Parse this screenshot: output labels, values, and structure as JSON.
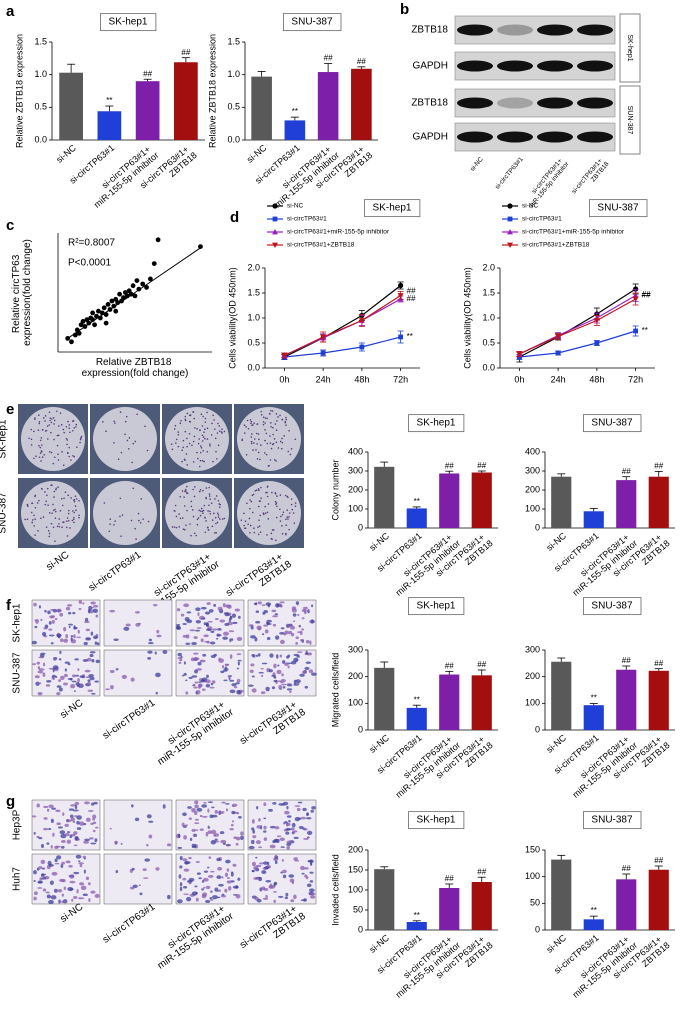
{
  "chart_data": [
    {
      "type": "bar",
      "panel_label": "a",
      "title": "SK-hep1",
      "y_label": "Relative ZBTB18 expression",
      "categories": [
        "si-NC",
        "si-circTP63#1",
        "si-circTP63#1+ miR-155-5p inhibitor",
        "si-circTP63#1+ ZBTB18"
      ],
      "values": [
        1.03,
        0.44,
        0.9,
        1.19
      ],
      "errors": [
        0.13,
        0.08,
        0.03,
        0.07
      ],
      "value_annotations": [
        null,
        "**",
        "##",
        "##"
      ],
      "colors": [
        "#595959",
        "#1f3fd6",
        "#7d1fa8",
        "#a30e0e"
      ],
      "ylim": [
        0,
        1.5
      ],
      "yticks": [
        {
          "value": 0,
          "label": "0.0"
        },
        0.5,
        {
          "value": 1,
          "label": "1.0"
        },
        1.5
      ]
    },
    {
      "type": "bar",
      "title": "SNU-387",
      "y_label": "Relative ZBTB18 expression",
      "categories": [
        "si-NC",
        "si-circTP63#1",
        "si-circTP63#1+ miR-155-5p inhibitor",
        "si-circTP63#1+ ZBTB18"
      ],
      "values": [
        0.97,
        0.3,
        1.04,
        1.09
      ],
      "errors": [
        0.08,
        0.05,
        0.13,
        0.03
      ],
      "value_annotations": [
        null,
        "**",
        "##",
        "##"
      ],
      "colors": [
        "#595959",
        "#1f3fd6",
        "#7d1fa8",
        "#a30e0e"
      ],
      "ylim": [
        0,
        1.5
      ],
      "yticks": [
        {
          "value": 0,
          "label": "0.0"
        },
        0.5,
        {
          "value": 1,
          "label": "1.0"
        },
        1.5
      ]
    },
    {
      "type": "scatter",
      "panel_label": "c",
      "x_label": "Relative ZBTB18 expression(fold change)",
      "y_label": "Relative circTP63 expression(fold change)",
      "annotations": [
        "R²=0.8007",
        "P<0.0001"
      ],
      "color": "#000000",
      "x": [
        0.5,
        0.7,
        0.9,
        1.0,
        1.1,
        1.2,
        1.3,
        1.4,
        1.5,
        1.6,
        1.7,
        1.8,
        1.9,
        2.0,
        2.1,
        2.2,
        2.3,
        2.4,
        2.5,
        2.6,
        2.7,
        2.8,
        2.9,
        3.0,
        3.1,
        3.2,
        3.3,
        3.4,
        3.5,
        3.6,
        3.7,
        3.8,
        3.9,
        4.0,
        4.1,
        4.2,
        4.4,
        4.6,
        4.8,
        5.0,
        5.2,
        7.4,
        3.0,
        2.5,
        1.8
      ],
      "y": [
        0.8,
        0.6,
        1.0,
        1.3,
        1.1,
        1.6,
        1.8,
        1.5,
        1.9,
        1.7,
        2.0,
        1.9,
        1.6,
        2.1,
        2.4,
        2.0,
        2.3,
        2.6,
        2.2,
        2.8,
        2.5,
        3.0,
        2.7,
        3.1,
        2.9,
        3.4,
        3.0,
        3.2,
        3.5,
        3.3,
        3.6,
        3.4,
        3.9,
        3.3,
        4.2,
        3.7,
        4.0,
        3.8,
        4.3,
        5.2,
        6.6,
        6.2,
        2.4,
        1.7,
        2.3
      ],
      "fit_line": {
        "x": [
          0.5,
          7.5
        ],
        "y": [
          0.8,
          6.2
        ]
      },
      "xlim": [
        0,
        8
      ],
      "ylim": [
        0,
        7
      ]
    },
    {
      "type": "line",
      "panel_label": "d",
      "title": "SK-hep1",
      "y_label": "Cells viability(OD 450nm)",
      "categories": [
        "0h",
        "24h",
        "48h",
        "72h"
      ],
      "series": [
        {
          "name": "si-NC",
          "color": "#000000",
          "marker": "circle",
          "values": [
            0.22,
            0.6,
            1.05,
            1.65
          ],
          "errors": [
            0.05,
            0.08,
            0.1,
            0.07
          ]
        },
        {
          "name": "si-circTP63#1",
          "color": "#1f3fd6",
          "marker": "square",
          "values": [
            0.22,
            0.3,
            0.42,
            0.62
          ],
          "errors": [
            0.05,
            0.06,
            0.08,
            0.12
          ],
          "annotation": "**"
        },
        {
          "name": "si-circTP63#1+miR-155-5p inhibitor",
          "color": "#9b1fc4",
          "marker": "triangle",
          "values": [
            0.25,
            0.6,
            0.95,
            1.38
          ],
          "errors": [
            0.05,
            0.08,
            0.1,
            0.06
          ],
          "annotation": "##"
        },
        {
          "name": "si-circTP63#1+ZBTB18",
          "color": "#c0141a",
          "marker": "triangle-down",
          "values": [
            0.25,
            0.62,
            0.95,
            1.45
          ],
          "errors": [
            0.05,
            0.1,
            0.12,
            0.08
          ],
          "annotation": "##"
        }
      ],
      "ylim": [
        0,
        2
      ],
      "yticks": [
        {
          "value": 0,
          "label": "0.0"
        },
        0.5,
        {
          "value": 1,
          "label": "1.0"
        },
        1.5,
        {
          "value": 2,
          "label": "2.0"
        }
      ]
    },
    {
      "type": "line",
      "title": "SNU-387",
      "y_label": "Cells viability(OD 450nm)",
      "categories": [
        "0h",
        "24h",
        "48h",
        "72h"
      ],
      "series": [
        {
          "name": "si-NC",
          "color": "#000000",
          "marker": "circle",
          "values": [
            0.22,
            0.62,
            1.08,
            1.58
          ],
          "errors": [
            0.1,
            0.06,
            0.12,
            0.1
          ]
        },
        {
          "name": "si-circTP63#1",
          "color": "#1f3fd6",
          "marker": "square",
          "values": [
            0.22,
            0.3,
            0.5,
            0.74
          ],
          "errors": [
            0.05,
            0.04,
            0.05,
            0.1
          ],
          "annotation": "**"
        },
        {
          "name": "si-circTP63#1+miR-155-5p inhibitor",
          "color": "#9b1fc4",
          "marker": "triangle",
          "values": [
            0.28,
            0.65,
            1.0,
            1.45
          ],
          "errors": [
            0.05,
            0.06,
            0.1,
            0.12
          ],
          "annotation": "##"
        },
        {
          "name": "si-circTP63#1+ZBTB18",
          "color": "#c0141a",
          "marker": "triangle-down",
          "values": [
            0.28,
            0.63,
            0.95,
            1.38
          ],
          "errors": [
            0.05,
            0.06,
            0.1,
            0.12
          ],
          "annotation": "##"
        }
      ],
      "ylim": [
        0,
        2
      ],
      "yticks": [
        {
          "value": 0,
          "label": "0.0"
        },
        0.5,
        {
          "value": 1,
          "label": "1.0"
        },
        1.5,
        {
          "value": 2,
          "label": "2.0"
        }
      ]
    },
    {
      "type": "bar",
      "title": "SK-hep1",
      "y_label": "Colony number",
      "categories": [
        "si-NC",
        "si-circTP63#1",
        "si-circTP63#1+ miR-155-5p inhibitor",
        "si-circTP63#1+ ZBTB18"
      ],
      "values": [
        322,
        103,
        287,
        292
      ],
      "errors": [
        25,
        8,
        12,
        8
      ],
      "value_annotations": [
        null,
        "**",
        "##",
        "##"
      ],
      "colors": [
        "#595959",
        "#1f3fd6",
        "#7d1fa8",
        "#a30e0e"
      ],
      "ylim": [
        0,
        400
      ],
      "yticks": [
        0,
        100,
        200,
        300,
        400
      ]
    },
    {
      "type": "bar",
      "title": "SNU-387",
      "categories": [
        "si-NC",
        "si-circTP63#1",
        "si-circTP63#1+ miR-155-5p inhibitor",
        "si-circTP63#1+ ZBTB18"
      ],
      "values": [
        270,
        88,
        252,
        270
      ],
      "errors": [
        15,
        15,
        18,
        28
      ],
      "value_annotations": [
        null,
        null,
        "##",
        "##"
      ],
      "colors": [
        "#595959",
        "#1f3fd6",
        "#7d1fa8",
        "#a30e0e"
      ],
      "ylim": [
        0,
        400
      ],
      "yticks": [
        0,
        100,
        200,
        300,
        400
      ]
    },
    {
      "type": "bar",
      "title": "SK-hep1",
      "y_label": "Migrated cells/field",
      "categories": [
        "si-NC",
        "si-circTP63#1",
        "si-circTP63#1+ miR-155-5p inhibitor",
        "si-circTP63#1+ ZBTB18"
      ],
      "values": [
        233,
        83,
        208,
        205
      ],
      "errors": [
        22,
        10,
        12,
        20
      ],
      "value_annotations": [
        null,
        "**",
        "##",
        "##"
      ],
      "colors": [
        "#595959",
        "#1f3fd6",
        "#7d1fa8",
        "#a30e0e"
      ],
      "ylim": [
        0,
        300
      ],
      "yticks": [
        0,
        100,
        200,
        300
      ]
    },
    {
      "type": "bar",
      "title": "SNU-387",
      "categories": [
        "si-NC",
        "si-circTP63#1",
        "si-circTP63#1+ miR-155-5p inhibitor",
        "si-circTP63#1+ ZBTB18"
      ],
      "values": [
        256,
        93,
        226,
        222
      ],
      "errors": [
        14,
        6,
        14,
        8
      ],
      "value_annotations": [
        null,
        "**",
        "##",
        "##"
      ],
      "colors": [
        "#595959",
        "#1f3fd6",
        "#7d1fa8",
        "#a30e0e"
      ],
      "ylim": [
        0,
        300
      ],
      "yticks": [
        0,
        100,
        200,
        300
      ]
    },
    {
      "type": "bar",
      "title": "SK-hep1",
      "y_label": "Invaded cells/field",
      "categories": [
        "si-NC",
        "si-circTP63#1",
        "si-circTP63#1+ miR-155-5p inhibitor",
        "si-circTP63#1+ ZBTB18"
      ],
      "values": [
        152,
        20,
        105,
        120
      ],
      "errors": [
        6,
        3,
        10,
        12
      ],
      "value_annotations": [
        null,
        "**",
        "##",
        "##"
      ],
      "colors": [
        "#595959",
        "#1f3fd6",
        "#7d1fa8",
        "#a30e0e"
      ],
      "ylim": [
        0,
        200
      ],
      "yticks": [
        0,
        50,
        100,
        150,
        200
      ]
    },
    {
      "type": "bar",
      "title": "SNU-387",
      "categories": [
        "si-NC",
        "si-circTP63#1",
        "si-circTP63#1+ miR-155-5p inhibitor",
        "si-circTP63#1+ ZBTB18"
      ],
      "values": [
        132,
        20,
        95,
        113
      ],
      "errors": [
        8,
        6,
        10,
        7
      ],
      "value_annotations": [
        null,
        "**",
        "##",
        "##"
      ],
      "colors": [
        "#595959",
        "#1f3fd6",
        "#7d1fa8",
        "#a30e0e"
      ],
      "ylim": [
        0,
        150
      ],
      "yticks": [
        0,
        50,
        100,
        150
      ]
    }
  ],
  "blot": {
    "panel_label": "b",
    "rows": [
      "ZBTB18",
      "GAPDH",
      "ZBTB18",
      "GAPDH"
    ],
    "groups": [
      "SK-hep1",
      "SUN-387"
    ],
    "lanes": [
      "si-NC",
      "si-circTP63#1",
      "si-circTP63#1+ miR-155-5p inhibitor",
      "si-circTP63#1+ ZBTB18"
    ]
  },
  "image_panels": [
    {
      "panel_label": "e",
      "row_labels": [
        "SK-hep1",
        "SNU-387"
      ],
      "column_labels": [
        "si-NC",
        "si-circTP63#1",
        "si-circTP63#1+ miR-155-5p inhibitor",
        "si-circTP63#1+ ZBTB18"
      ]
    },
    {
      "panel_label": "f",
      "row_labels": [
        "SK-hep1",
        "SNU-387"
      ],
      "column_labels": [
        "si-NC",
        "si-circTP63#1",
        "si-circTP63#1+ miR-155-5p inhibitor",
        "si-circTP63#1+ ZBTB18"
      ]
    },
    {
      "panel_label": "g",
      "row_labels": [
        "Hep3P",
        "Huh7"
      ],
      "column_labels": [
        "si-NC",
        "si-circTP63#1",
        "si-circTP63#1+ miR-155-5p inhibitor",
        "si-circTP63#1+ ZBTB18"
      ]
    }
  ]
}
